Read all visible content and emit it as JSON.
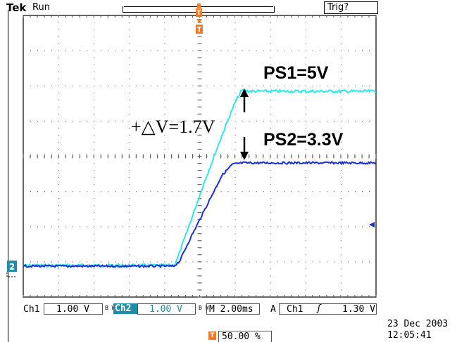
{
  "status": {
    "brand": "Tek",
    "run_state": "Run",
    "trigger_status": "Trig?"
  },
  "markers": {
    "trigger_marker": "T",
    "ground_ch2": "2"
  },
  "annotations": {
    "ps1": "PS1=5V",
    "ps2": "PS2=3.3V",
    "delta": "+△V=1.7V"
  },
  "readouts": {
    "ch1_label": "Ch1",
    "ch1_scale": "1.00 V",
    "bw1": "B W",
    "ch2_label": "Ch2",
    "ch2_scale": "1.00 V",
    "bw2": "B W",
    "timebase": "M 2.00ms",
    "trig_label": "A",
    "trig_source": "Ch1",
    "trig_slope": "ʃ",
    "trig_level": "1.30 V",
    "trig_position": "50.00 %",
    "date": "23 Dec  2003",
    "time": "12:05:41"
  },
  "colors": {
    "ch1": "#33e6e6",
    "ch2": "#1d2fd6",
    "marker": "#f47920",
    "ch2_tag": "#1f8fa8"
  }
}
